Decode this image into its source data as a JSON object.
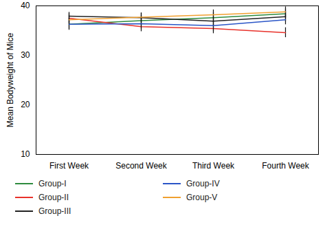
{
  "chart_data": {
    "type": "line",
    "y_label": "Mean Bodyweight of Mice",
    "categories": [
      "First Week",
      "Second Week",
      "Third Week",
      "Fourth Week"
    ],
    "ylim": [
      10,
      40
    ],
    "yticks": [
      10,
      20,
      30,
      40
    ],
    "legend": "bottom",
    "series": [
      {
        "name": "Group-I",
        "color": "#2e8b3e",
        "values": [
          36.3,
          37.0,
          37.6,
          38.4
        ],
        "errors": [
          1.0,
          1.0,
          1.1,
          1.0
        ]
      },
      {
        "name": "Group-II",
        "color": "#e8312a",
        "values": [
          37.5,
          35.8,
          35.4,
          34.6
        ],
        "errors": [
          1.0,
          1.0,
          1.0,
          1.0
        ]
      },
      {
        "name": "Group-III",
        "color": "#222222",
        "values": [
          37.9,
          37.6,
          36.9,
          37.8
        ],
        "errors": [
          0.8,
          0.9,
          1.0,
          1.0
        ]
      },
      {
        "name": "Group-IV",
        "color": "#2a55c7",
        "values": [
          36.3,
          36.4,
          36.0,
          37.2
        ],
        "errors": [
          1.2,
          1.1,
          1.2,
          1.0
        ]
      },
      {
        "name": "Group-V",
        "color": "#f0a030",
        "values": [
          37.2,
          37.7,
          38.2,
          38.8
        ],
        "errors": [
          0.9,
          0.9,
          1.0,
          1.0
        ]
      }
    ]
  }
}
